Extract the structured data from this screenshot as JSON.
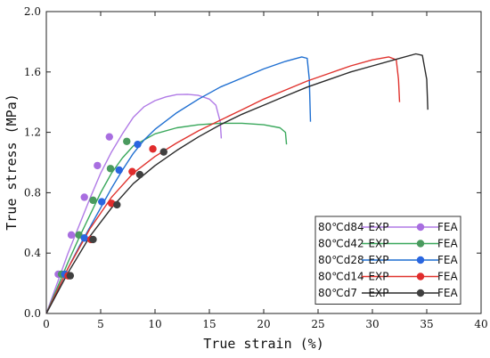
{
  "chart_data": {
    "type": "line",
    "xlabel": "True strain (%)",
    "ylabel": "True stress (MPa)",
    "xlim": [
      0,
      40
    ],
    "ylim": [
      0,
      2.0
    ],
    "xticks": [
      "0",
      "5",
      "10",
      "15",
      "20",
      "25",
      "30",
      "35",
      "40"
    ],
    "yticks": [
      "0.0",
      "0.4",
      "0.8",
      "1.2",
      "1.6",
      "2.0"
    ],
    "grid": false,
    "legend_position": "bottom-right",
    "series": [
      {
        "label": "80℃d84",
        "exp_label": "EXP",
        "fea_label": "FEA",
        "color": "#b07ae6",
        "fea_color": "#a86ee0",
        "exp": [
          [
            0,
            0
          ],
          [
            1,
            0.2
          ],
          [
            2,
            0.4
          ],
          [
            3,
            0.58
          ],
          [
            4,
            0.76
          ],
          [
            5,
            0.93
          ],
          [
            6,
            1.07
          ],
          [
            7,
            1.19
          ],
          [
            8,
            1.3
          ],
          [
            9,
            1.37
          ],
          [
            10,
            1.41
          ],
          [
            11,
            1.435
          ],
          [
            12,
            1.45
          ],
          [
            13,
            1.452
          ],
          [
            14,
            1.445
          ],
          [
            15,
            1.42
          ],
          [
            15.6,
            1.38
          ],
          [
            16.0,
            1.27
          ],
          [
            16.1,
            1.16
          ]
        ],
        "fea": [
          [
            1.1,
            0.26
          ],
          [
            2.3,
            0.52
          ],
          [
            3.5,
            0.77
          ],
          [
            4.7,
            0.98
          ],
          [
            5.8,
            1.17
          ]
        ]
      },
      {
        "label": "80℃d42",
        "exp_label": "EXP",
        "fea_label": "FEA",
        "color": "#3aa85c",
        "fea_color": "#4a9a5e",
        "exp": [
          [
            0,
            0
          ],
          [
            1,
            0.17
          ],
          [
            2,
            0.34
          ],
          [
            3,
            0.5
          ],
          [
            4,
            0.65
          ],
          [
            5,
            0.8
          ],
          [
            6,
            0.93
          ],
          [
            7,
            1.03
          ],
          [
            8,
            1.11
          ],
          [
            10,
            1.19
          ],
          [
            12,
            1.23
          ],
          [
            14,
            1.25
          ],
          [
            16,
            1.26
          ],
          [
            18,
            1.26
          ],
          [
            20,
            1.25
          ],
          [
            21.5,
            1.23
          ],
          [
            22.0,
            1.2
          ],
          [
            22.1,
            1.12
          ]
        ],
        "fea": [
          [
            1.4,
            0.26
          ],
          [
            3.0,
            0.52
          ],
          [
            4.3,
            0.75
          ],
          [
            5.9,
            0.96
          ],
          [
            7.4,
            1.14
          ]
        ]
      },
      {
        "label": "80℃d28",
        "exp_label": "EXP",
        "fea_label": "FEA",
        "color": "#1f6fd1",
        "fea_color": "#2a66e0",
        "exp": [
          [
            0,
            0
          ],
          [
            1,
            0.15
          ],
          [
            2,
            0.3
          ],
          [
            3,
            0.44
          ],
          [
            4,
            0.57
          ],
          [
            5,
            0.7
          ],
          [
            6,
            0.83
          ],
          [
            7,
            0.95
          ],
          [
            8,
            1.06
          ],
          [
            9,
            1.15
          ],
          [
            10,
            1.22
          ],
          [
            12,
            1.33
          ],
          [
            14,
            1.42
          ],
          [
            16,
            1.5
          ],
          [
            18,
            1.56
          ],
          [
            20,
            1.62
          ],
          [
            22,
            1.67
          ],
          [
            23.5,
            1.7
          ],
          [
            24.0,
            1.69
          ],
          [
            24.2,
            1.55
          ],
          [
            24.3,
            1.27
          ]
        ],
        "fea": [
          [
            1.7,
            0.26
          ],
          [
            3.5,
            0.5
          ],
          [
            5.1,
            0.74
          ],
          [
            6.7,
            0.95
          ],
          [
            8.4,
            1.12
          ]
        ]
      },
      {
        "label": "80℃d14",
        "exp_label": "EXP",
        "fea_label": "FEA",
        "color": "#e0332e",
        "fea_color": "#e02c2c",
        "exp": [
          [
            0,
            0
          ],
          [
            2,
            0.3
          ],
          [
            4,
            0.56
          ],
          [
            6,
            0.77
          ],
          [
            8,
            0.93
          ],
          [
            10,
            1.04
          ],
          [
            12,
            1.13
          ],
          [
            14,
            1.21
          ],
          [
            16,
            1.28
          ],
          [
            18,
            1.35
          ],
          [
            20,
            1.42
          ],
          [
            22,
            1.48
          ],
          [
            24,
            1.54
          ],
          [
            26,
            1.59
          ],
          [
            28,
            1.64
          ],
          [
            30,
            1.68
          ],
          [
            31.5,
            1.7
          ],
          [
            32.2,
            1.68
          ],
          [
            32.4,
            1.55
          ],
          [
            32.5,
            1.4
          ]
        ],
        "fea": [
          [
            2.0,
            0.25
          ],
          [
            4.1,
            0.49
          ],
          [
            6.0,
            0.73
          ],
          [
            7.9,
            0.94
          ],
          [
            9.8,
            1.09
          ]
        ]
      },
      {
        "label": "80℃d7",
        "exp_label": "EXP",
        "fea_label": "FEA",
        "color": "#2b2b2b",
        "fea_color": "#404040",
        "exp": [
          [
            0,
            0
          ],
          [
            2,
            0.27
          ],
          [
            4,
            0.51
          ],
          [
            6,
            0.7
          ],
          [
            8,
            0.86
          ],
          [
            10,
            0.98
          ],
          [
            12,
            1.08
          ],
          [
            14,
            1.17
          ],
          [
            16,
            1.25
          ],
          [
            18,
            1.32
          ],
          [
            20,
            1.38
          ],
          [
            22,
            1.44
          ],
          [
            24,
            1.5
          ],
          [
            26,
            1.55
          ],
          [
            28,
            1.6
          ],
          [
            30,
            1.64
          ],
          [
            32,
            1.68
          ],
          [
            34,
            1.72
          ],
          [
            34.6,
            1.71
          ],
          [
            35.0,
            1.55
          ],
          [
            35.1,
            1.35
          ]
        ],
        "fea": [
          [
            2.2,
            0.25
          ],
          [
            4.3,
            0.49
          ],
          [
            6.5,
            0.72
          ],
          [
            8.6,
            0.92
          ],
          [
            10.8,
            1.07
          ]
        ]
      }
    ]
  }
}
